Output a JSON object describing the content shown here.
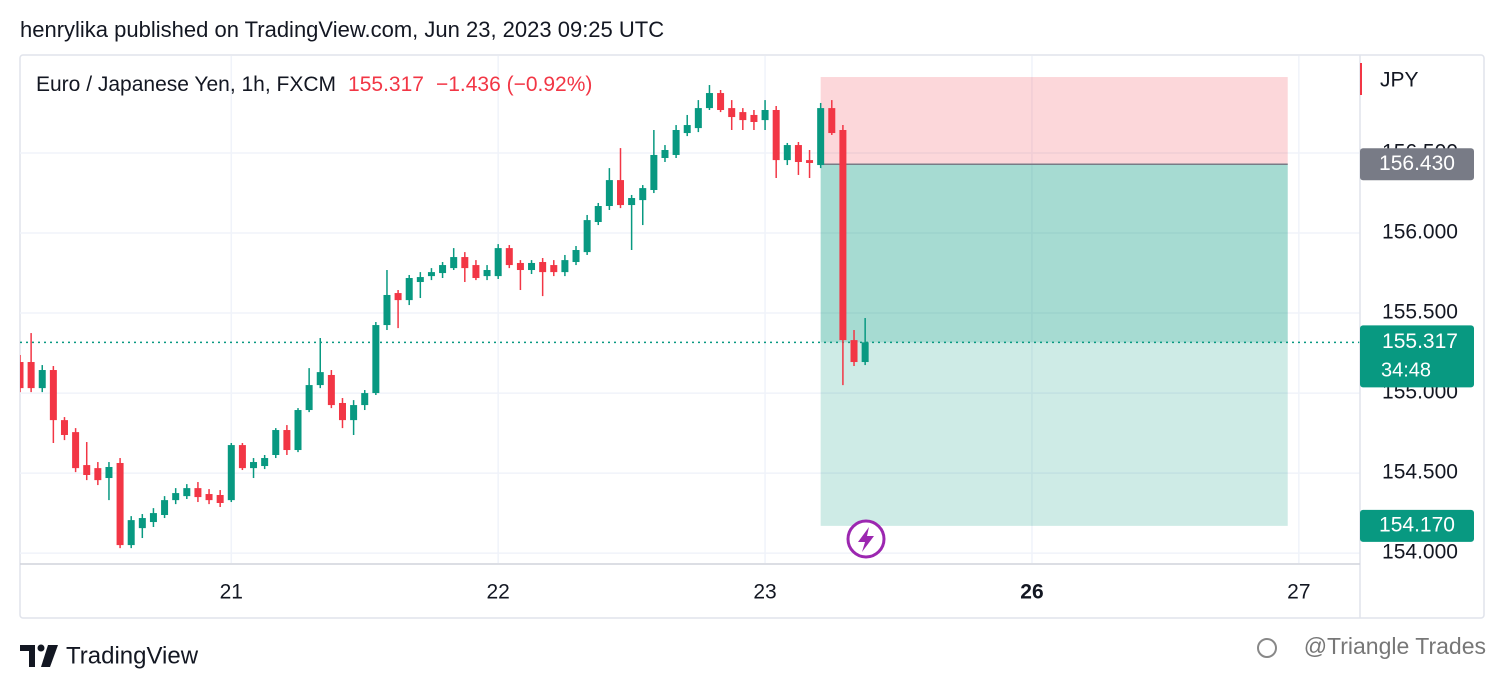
{
  "header": {
    "byline": "henrylika published on TradingView.com, Jun 23, 2023 09:25 UTC"
  },
  "chart_data": {
    "type": "candlestick",
    "symbol": "Euro / Japanese Yen, 1h, FXCM",
    "change": "−1.436 (−0.92%)",
    "currency": "JPY",
    "last_price": 155.317,
    "countdown": "34:48",
    "up_color": "#089981",
    "down_color": "#f23645",
    "grid": true,
    "xlim": [
      -19,
      101.5
    ],
    "ylim": [
      153.938,
      157.069
    ],
    "xticks": [
      {
        "value": 0,
        "label": "21"
      },
      {
        "value": 24,
        "label": "22"
      },
      {
        "value": 48,
        "label": "23"
      },
      {
        "value": 72,
        "label": "26",
        "bold": true
      },
      {
        "value": 96,
        "label": "27"
      }
    ],
    "yticks": [
      {
        "value": 154,
        "label": "154.000"
      },
      {
        "value": 154.5,
        "label": "154.500"
      },
      {
        "value": 155,
        "label": "155.000"
      },
      {
        "value": 155.5,
        "label": "155.500"
      },
      {
        "value": 156,
        "label": "156.000"
      },
      {
        "value": 156.5,
        "label": "156.500"
      }
    ],
    "x": [
      -19,
      -18,
      -17,
      -16,
      -15,
      -14,
      -13,
      -12,
      -11,
      -10,
      -9,
      -8,
      -7,
      -6,
      -5,
      -4,
      -3,
      -2,
      -1,
      0,
      1,
      2,
      3,
      4,
      5,
      6,
      7,
      8,
      9,
      10,
      11,
      12,
      13,
      14,
      15,
      16,
      17,
      18,
      19,
      20,
      21,
      22,
      23,
      24,
      25,
      26,
      27,
      28,
      29,
      30,
      31,
      32,
      33,
      34,
      35,
      36,
      37,
      38,
      39,
      40,
      41,
      42,
      43,
      44,
      45,
      46,
      47,
      48,
      49,
      50,
      51,
      52,
      53,
      54,
      55,
      56,
      57
    ],
    "open": [
      155.194,
      155.194,
      155.031,
      155.144,
      154.831,
      154.756,
      154.55,
      154.531,
      154.469,
      154.563,
      154.05,
      154.156,
      154.194,
      154.238,
      154.331,
      154.356,
      154.406,
      154.369,
      154.363,
      154.331,
      154.675,
      154.531,
      154.544,
      154.613,
      154.769,
      154.644,
      154.894,
      155.05,
      155.113,
      154.938,
      154.831,
      154.925,
      155.0,
      155.425,
      155.625,
      155.581,
      155.694,
      155.731,
      155.75,
      155.781,
      155.85,
      155.8,
      155.731,
      155.731,
      155.906,
      155.813,
      155.769,
      155.819,
      155.8,
      155.756,
      155.819,
      155.881,
      156.069,
      156.169,
      156.331,
      156.175,
      156.206,
      156.269,
      156.469,
      156.488,
      156.625,
      156.656,
      156.781,
      156.875,
      156.781,
      156.756,
      156.738,
      156.706,
      156.769,
      156.456,
      156.55,
      156.456,
      156.425,
      156.781,
      156.644,
      155.331,
      155.194
    ],
    "high": [
      155.238,
      155.375,
      155.175,
      155.169,
      154.85,
      154.781,
      154.694,
      154.569,
      154.569,
      154.594,
      154.231,
      154.244,
      154.281,
      154.356,
      154.406,
      154.431,
      154.444,
      154.4,
      154.394,
      154.688,
      154.688,
      154.594,
      154.613,
      154.781,
      154.8,
      154.906,
      155.156,
      155.344,
      155.144,
      154.969,
      154.956,
      155.019,
      155.444,
      155.769,
      155.644,
      155.738,
      155.756,
      155.781,
      155.819,
      155.906,
      155.881,
      155.831,
      155.8,
      155.931,
      155.925,
      155.831,
      155.831,
      155.844,
      155.831,
      155.863,
      155.919,
      156.113,
      156.188,
      156.406,
      156.531,
      156.238,
      156.3,
      156.644,
      156.55,
      156.675,
      156.738,
      156.831,
      156.925,
      156.894,
      156.831,
      156.781,
      156.769,
      156.831,
      156.794,
      156.563,
      156.569,
      156.519,
      156.813,
      156.831,
      156.675,
      155.394,
      155.469
    ],
    "low": [
      155.006,
      155.006,
      155.006,
      154.688,
      154.706,
      154.506,
      154.456,
      154.425,
      154.331,
      154.031,
      154.031,
      154.094,
      154.163,
      154.219,
      154.306,
      154.338,
      154.319,
      154.306,
      154.288,
      154.319,
      154.519,
      154.469,
      154.525,
      154.594,
      154.613,
      154.631,
      154.881,
      155.031,
      154.906,
      154.781,
      154.738,
      154.894,
      154.988,
      155.394,
      155.406,
      155.55,
      155.594,
      155.706,
      155.719,
      155.769,
      155.694,
      155.706,
      155.706,
      155.713,
      155.781,
      155.644,
      155.744,
      155.606,
      155.731,
      155.731,
      155.8,
      155.863,
      156.05,
      156.144,
      156.156,
      155.894,
      156.05,
      156.25,
      156.444,
      156.469,
      156.606,
      156.631,
      156.769,
      156.756,
      156.644,
      156.644,
      156.644,
      156.644,
      156.344,
      156.425,
      156.363,
      156.344,
      156.406,
      156.613,
      155.05,
      155.169,
      155.175
    ],
    "close": [
      155.031,
      155.031,
      155.144,
      154.831,
      154.738,
      154.531,
      154.488,
      154.456,
      154.538,
      154.05,
      154.206,
      154.219,
      154.25,
      154.331,
      154.375,
      154.406,
      154.35,
      154.331,
      154.313,
      154.675,
      154.531,
      154.569,
      154.594,
      154.769,
      154.644,
      154.894,
      155.05,
      155.131,
      154.925,
      154.831,
      154.925,
      155.0,
      155.425,
      155.613,
      155.581,
      155.719,
      155.725,
      155.756,
      155.8,
      155.85,
      155.781,
      155.719,
      155.769,
      155.906,
      155.8,
      155.769,
      155.813,
      155.756,
      155.756,
      155.831,
      155.894,
      156.081,
      156.169,
      156.331,
      156.175,
      156.219,
      156.281,
      156.488,
      156.519,
      156.644,
      156.675,
      156.781,
      156.875,
      156.769,
      156.725,
      156.706,
      156.694,
      156.769,
      156.456,
      156.55,
      156.444,
      156.438,
      156.781,
      156.625,
      155.331,
      155.194,
      155.317
    ],
    "position": {
      "x": [
        53,
        95
      ],
      "stop": 156.975,
      "entry": {
        "value": 156.43,
        "label": "156.430"
      },
      "target": {
        "value": 154.17,
        "label": "154.170"
      }
    }
  },
  "footer": {
    "brand": "TradingView",
    "watermark": "@Triangle Trades"
  }
}
